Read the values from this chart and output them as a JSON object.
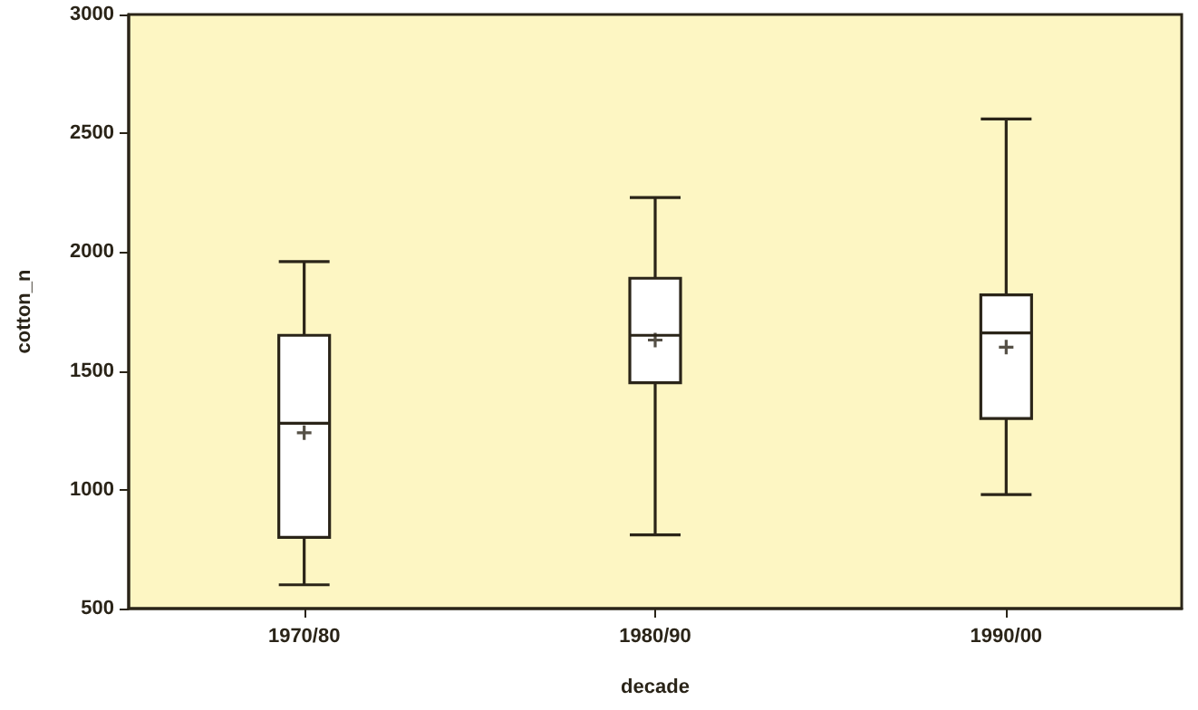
{
  "chart_data": {
    "type": "box",
    "xlabel": "decade",
    "ylabel": "cotton_n",
    "categories": [
      "1970/80",
      "1980/90",
      "1990/00"
    ],
    "boxes": [
      {
        "low": 600,
        "q1": 800,
        "median": 1280,
        "q3": 1650,
        "high": 1960,
        "mean": 1240
      },
      {
        "low": 810,
        "q1": 1450,
        "median": 1650,
        "q3": 1890,
        "high": 2230,
        "mean": 1630
      },
      {
        "low": 980,
        "q1": 1300,
        "median": 1660,
        "q3": 1820,
        "high": 2560,
        "mean": 1600
      }
    ],
    "color": "#ffffff",
    "ylim": [
      500,
      3000
    ],
    "yticks": [
      500,
      1000,
      1500,
      2000,
      2500,
      3000
    ],
    "grid": false,
    "marker": "cross"
  }
}
